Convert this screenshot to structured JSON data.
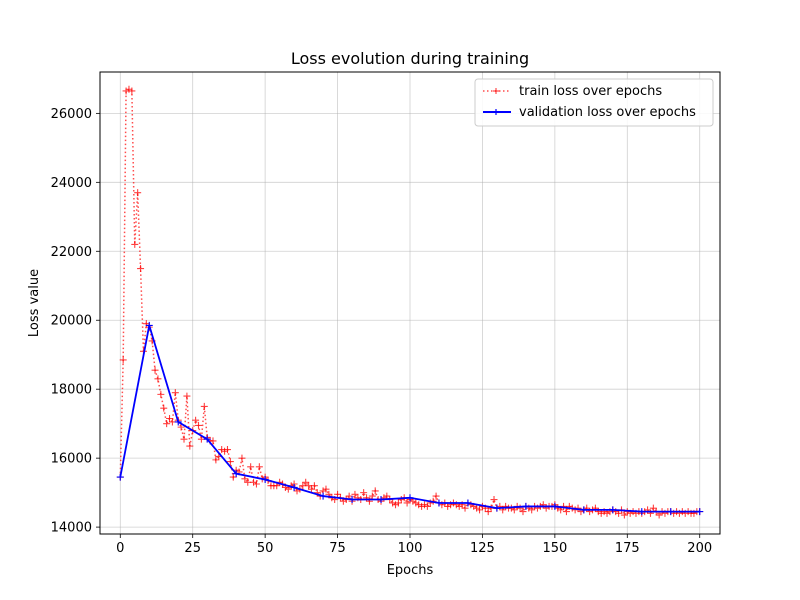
{
  "chart_data": {
    "type": "line",
    "title": "Loss evolution during training",
    "xlabel": "Epochs",
    "ylabel": "Loss value",
    "xlim": [
      -7,
      207
    ],
    "ylim": [
      13800,
      27200
    ],
    "xticks": [
      0,
      25,
      50,
      75,
      100,
      125,
      150,
      175,
      200
    ],
    "yticks": [
      14000,
      16000,
      18000,
      20000,
      22000,
      24000,
      26000
    ],
    "grid": true,
    "legend_position": "top-right",
    "series": [
      {
        "name": "train loss over epochs",
        "color": "#ff0000",
        "style": "dotted",
        "marker": "plus",
        "x": [
          0,
          1,
          2,
          3,
          4,
          5,
          6,
          7,
          8,
          9,
          10,
          11,
          12,
          13,
          14,
          15,
          16,
          17,
          18,
          19,
          20,
          21,
          22,
          23,
          24,
          25,
          26,
          27,
          28,
          29,
          30,
          31,
          32,
          33,
          34,
          35,
          36,
          37,
          38,
          39,
          40,
          41,
          42,
          43,
          44,
          45,
          46,
          47,
          48,
          49,
          50,
          51,
          52,
          53,
          54,
          55,
          56,
          57,
          58,
          59,
          60,
          61,
          62,
          63,
          64,
          65,
          66,
          67,
          68,
          69,
          70,
          71,
          72,
          73,
          74,
          75,
          76,
          77,
          78,
          79,
          80,
          81,
          82,
          83,
          84,
          85,
          86,
          87,
          88,
          89,
          90,
          91,
          92,
          93,
          94,
          95,
          96,
          97,
          98,
          99,
          100,
          101,
          102,
          103,
          104,
          105,
          106,
          107,
          108,
          109,
          110,
          111,
          112,
          113,
          114,
          115,
          116,
          117,
          118,
          119,
          120,
          121,
          122,
          123,
          124,
          125,
          126,
          127,
          128,
          129,
          130,
          131,
          132,
          133,
          134,
          135,
          136,
          137,
          138,
          139,
          140,
          141,
          142,
          143,
          144,
          145,
          146,
          147,
          148,
          149,
          150,
          151,
          152,
          153,
          154,
          155,
          156,
          157,
          158,
          159,
          160,
          161,
          162,
          163,
          164,
          165,
          166,
          167,
          168,
          169,
          170,
          171,
          172,
          173,
          174,
          175,
          176,
          177,
          178,
          179,
          180,
          181,
          182,
          183,
          184,
          185,
          186,
          187,
          188,
          189,
          190,
          191,
          192,
          193,
          194,
          195,
          196,
          197,
          198,
          199,
          200
        ],
        "y": [
          15450,
          18850,
          26650,
          26700,
          26650,
          22200,
          23700,
          21500,
          19100,
          19900,
          19800,
          19400,
          18550,
          18300,
          17850,
          17450,
          17000,
          17150,
          17050,
          17900,
          17100,
          16900,
          16550,
          17800,
          16350,
          16800,
          17100,
          16950,
          16550,
          17500,
          16600,
          16500,
          16500,
          15950,
          16050,
          16250,
          16200,
          16250,
          15900,
          15450,
          15650,
          15600,
          16000,
          15400,
          15300,
          15750,
          15300,
          15250,
          15750,
          15400,
          15450,
          15350,
          15200,
          15200,
          15200,
          15300,
          15250,
          15150,
          15100,
          15200,
          15250,
          15050,
          15100,
          15200,
          15300,
          15200,
          15100,
          15200,
          15000,
          14900,
          15050,
          15100,
          14950,
          14850,
          14800,
          14950,
          14850,
          14750,
          14800,
          14900,
          14750,
          14950,
          14850,
          14800,
          15000,
          14850,
          14750,
          14900,
          15050,
          14800,
          14750,
          14850,
          14900,
          14800,
          14700,
          14650,
          14700,
          14800,
          14850,
          14700,
          14800,
          14750,
          14700,
          14650,
          14600,
          14650,
          14600,
          14700,
          14750,
          14900,
          14700,
          14650,
          14700,
          14600,
          14650,
          14700,
          14650,
          14600,
          14650,
          14550,
          14700,
          14650,
          14600,
          14550,
          14500,
          14600,
          14550,
          14450,
          14550,
          14800,
          14550,
          14600,
          14500,
          14600,
          14550,
          14550,
          14500,
          14600,
          14550,
          14450,
          14600,
          14550,
          14500,
          14600,
          14550,
          14600,
          14650,
          14550,
          14600,
          14600,
          14650,
          14550,
          14500,
          14600,
          14450,
          14600,
          14550,
          14500,
          14550,
          14450,
          14500,
          14550,
          14450,
          14500,
          14550,
          14450,
          14400,
          14450,
          14400,
          14450,
          14500,
          14450,
          14400,
          14500,
          14350,
          14450,
          14400,
          14450,
          14400,
          14450,
          14400,
          14450,
          14500,
          14400,
          14550,
          14450,
          14350,
          14450,
          14400,
          14450,
          14450,
          14400,
          14450,
          14400,
          14450,
          14400,
          14450,
          14400,
          14400,
          14450,
          14450
        ]
      },
      {
        "name": "validation loss over epochs",
        "color": "#0000ff",
        "style": "solid",
        "marker": "plus",
        "x": [
          0,
          10,
          20,
          30,
          40,
          50,
          60,
          70,
          80,
          90,
          100,
          110,
          120,
          130,
          140,
          150,
          160,
          170,
          180,
          190,
          200
        ],
        "y": [
          15450,
          19850,
          17050,
          16550,
          15550,
          15380,
          15150,
          14900,
          14800,
          14800,
          14850,
          14700,
          14700,
          14550,
          14600,
          14600,
          14500,
          14500,
          14450,
          14450,
          14450
        ]
      }
    ]
  }
}
